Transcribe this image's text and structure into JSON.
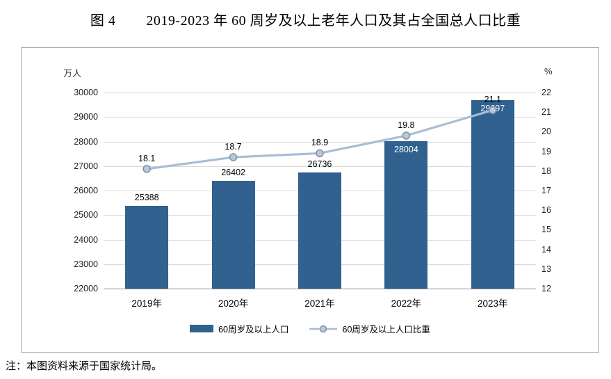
{
  "title": {
    "prefix": "图 4",
    "text": "2019-2023 年 60 周岁及以上老年人口及其占全国总人口比重"
  },
  "note": "注：本图资料来源于国家统计局。",
  "chart_data": {
    "type": "bar+line",
    "categories": [
      "2019年",
      "2020年",
      "2021年",
      "2022年",
      "2023年"
    ],
    "series": [
      {
        "name": "60周岁及以上人口",
        "type": "bar",
        "axis": "left",
        "values": [
          25388,
          26402,
          26736,
          28004,
          29697
        ],
        "color": "#30618f",
        "label_inside": [
          false,
          false,
          false,
          true,
          true
        ]
      },
      {
        "name": "60周岁及以上人口比重",
        "type": "line",
        "axis": "right",
        "values": [
          18.1,
          18.7,
          18.9,
          19.8,
          21.1
        ],
        "color": "#a9bdd6",
        "marker_fill": "#b7c9de",
        "marker_stroke": "#80909f"
      }
    ],
    "left_axis": {
      "unit": "万人",
      "min": 22000,
      "max": 30000,
      "step": 1000
    },
    "right_axis": {
      "unit": "%",
      "min": 12,
      "max": 22,
      "step": 1
    },
    "grid": true,
    "legend_position": "bottom"
  }
}
